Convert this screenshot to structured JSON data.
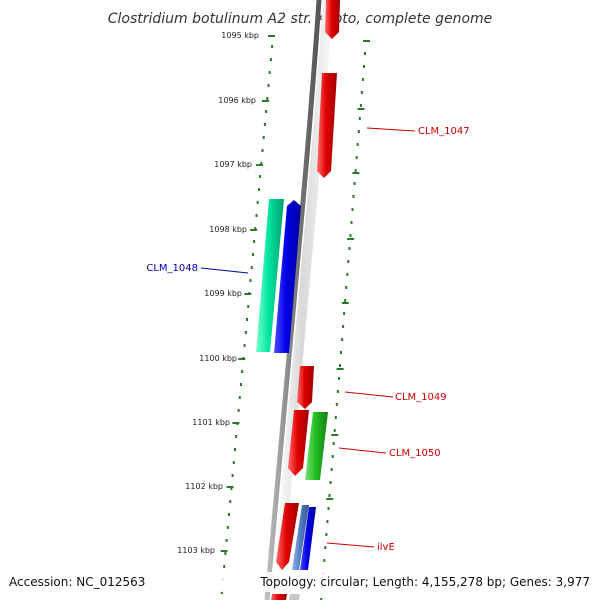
{
  "title": "Clostridium botulinum A2 str. Kyoto, complete genome",
  "footer": {
    "accession": "Accession: NC_012563",
    "topology": "Topology: circular; Length: 4,155,278 bp; Genes: 3,977"
  },
  "ticks": [
    {
      "label": "1095 kbp",
      "kbp": 1095
    },
    {
      "label": "1096 kbp",
      "kbp": 1096
    },
    {
      "label": "1097 kbp",
      "kbp": 1097
    },
    {
      "label": "1098 kbp",
      "kbp": 1098
    },
    {
      "label": "1099 kbp",
      "kbp": 1099
    },
    {
      "label": "1100 kbp",
      "kbp": 1100
    },
    {
      "label": "1101 kbp",
      "kbp": 1101
    },
    {
      "label": "1102 kbp",
      "kbp": 1102
    },
    {
      "label": "1103 kbp",
      "kbp": 1103
    }
  ],
  "genes": [
    {
      "name": "CLM_1047",
      "label": "CLM_1047",
      "color": "#e00000",
      "strand": "+"
    },
    {
      "name": "CLM_1048",
      "label": "CLM_1048",
      "color": "#0000e6",
      "strand": "-"
    },
    {
      "name": "CLM_1048b",
      "label": "",
      "color": "#00e6a0",
      "strand": "-"
    },
    {
      "name": "CLM_1049",
      "label": "CLM_1049",
      "color": "#e00000",
      "strand": "+"
    },
    {
      "name": "CLM_1050",
      "label": "CLM_1050",
      "color": "#e00000",
      "strand": "+"
    },
    {
      "name": "CLM_1050b",
      "label": "",
      "color": "#22c022",
      "strand": "+"
    },
    {
      "name": "ilvE",
      "label": "ilvE",
      "color": "#e00000",
      "strand": "+"
    },
    {
      "name": "ilvE-b",
      "label": "",
      "color": "#5580c8",
      "strand": "+"
    },
    {
      "name": "ilvE-c",
      "label": "",
      "color": "#0000e6",
      "strand": "+"
    }
  ],
  "colors": {
    "backbone": "#808080",
    "tick_dots": "#2a7a2a",
    "label_forward": "#cc0000",
    "label_reverse": "#0000aa"
  }
}
